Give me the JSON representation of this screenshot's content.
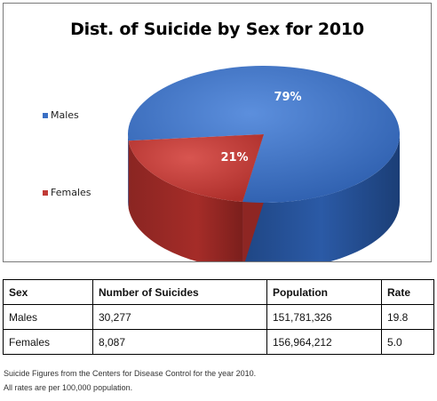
{
  "chart_data": {
    "type": "pie",
    "title": "Dist. of Suicide by Sex for 2010",
    "categories": [
      "Males",
      "Females"
    ],
    "values": [
      79,
      21
    ],
    "labels": [
      "79%",
      "21%"
    ],
    "colors": [
      "#3a6fc4",
      "#c03b36"
    ],
    "legend_placement": "left"
  },
  "table": {
    "headers": [
      "Sex",
      "Number of Suicides",
      "Population",
      "Rate"
    ],
    "rows": [
      [
        "Males",
        "30,277",
        "151,781,326",
        "19.8"
      ],
      [
        "Females",
        "8,087",
        "156,964,212",
        "5.0"
      ]
    ]
  },
  "footnotes": [
    "Suicide Figures from the Centers for Disease Control for the year 2010.",
    "All rates are per 100,000 population."
  ]
}
